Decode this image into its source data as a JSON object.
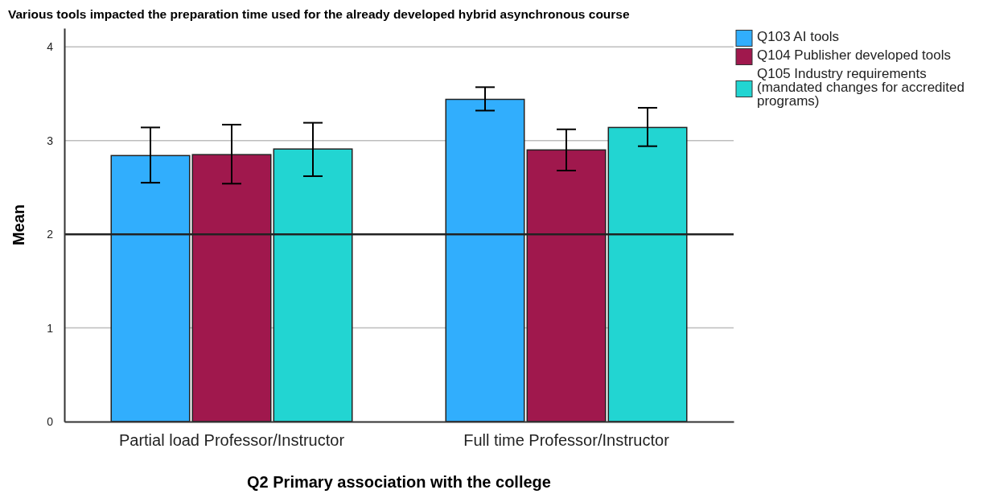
{
  "chart_data": {
    "type": "bar",
    "title": "Various tools impacted the preparation time used for the already developed hybrid asynchronous course",
    "xlabel": "Q2 Primary association with the college",
    "ylabel": "Mean",
    "categories": [
      "Partial load Professor/Instructor",
      "Full time Professor/Instructor"
    ],
    "series": [
      {
        "name": "Q103 AI tools",
        "color": "#31aefd",
        "values": [
          2.84,
          3.44
        ],
        "errors": [
          [
            2.55,
            3.14
          ],
          [
            3.32,
            3.57
          ]
        ]
      },
      {
        "name": "Q104 Publisher developed tools",
        "color": "#a0184d",
        "values": [
          2.85,
          2.9
        ],
        "errors": [
          [
            2.54,
            3.17
          ],
          [
            2.68,
            3.12
          ]
        ]
      },
      {
        "name": "Q105 Industry requirements (mandated changes for accredited programs)",
        "color": "#22d5d2",
        "values": [
          2.91,
          3.14
        ],
        "errors": [
          [
            2.62,
            3.19
          ],
          [
            2.94,
            3.35
          ]
        ]
      }
    ],
    "ylim": [
      0,
      4.2
    ],
    "yticks": [
      0,
      1,
      2,
      3,
      4
    ],
    "grid": "y",
    "legend": "top right",
    "ref_lines": [
      {
        "axis": "y",
        "value": 2,
        "color": "#222222"
      }
    ]
  }
}
